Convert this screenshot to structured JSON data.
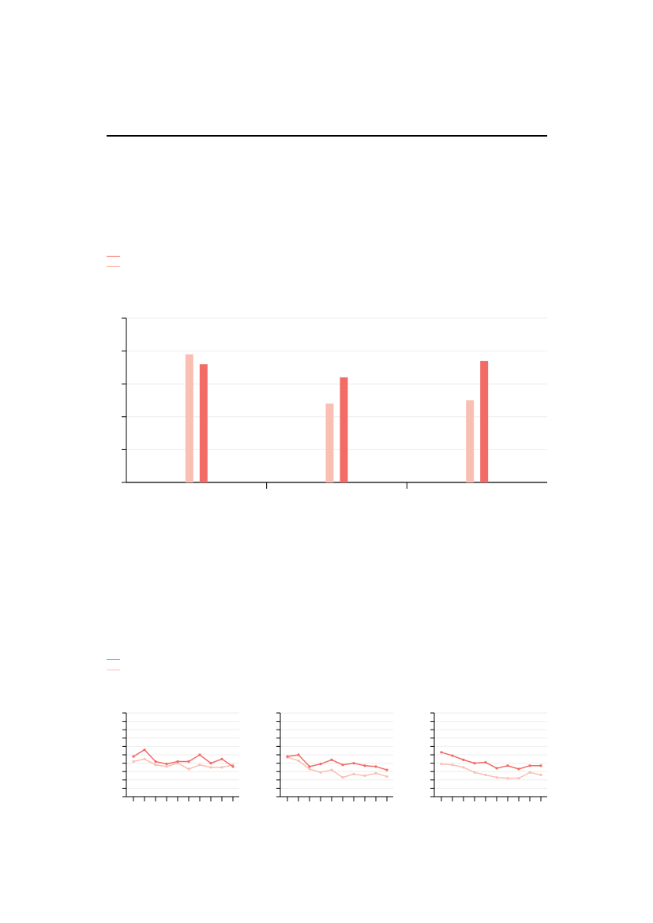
{
  "colors": {
    "series_dark": "#f26b67",
    "series_light": "#f9bfb3",
    "gridline": "#eeeeee",
    "axis": "#000000"
  },
  "legend_top": {
    "entries": [
      {
        "color": "#f26b67"
      },
      {
        "color": "#f9bfb3"
      }
    ]
  },
  "legend_bottom": {
    "entries": [
      {
        "color": "#f26b67"
      },
      {
        "color": "#f9bfb3"
      }
    ]
  },
  "chart_data": [
    {
      "type": "bar",
      "title": "",
      "xlabel": "",
      "ylabel": "",
      "categories": [
        "",
        "",
        ""
      ],
      "ylim": [
        0,
        5
      ],
      "grid": true,
      "series": [
        {
          "values": [
            3.9,
            2.4,
            2.5
          ],
          "color": "#f9bfb3"
        },
        {
          "values": [
            3.6,
            3.2,
            3.7
          ],
          "color": "#f26b67"
        }
      ]
    },
    {
      "type": "line",
      "title": "",
      "ylim": [
        0,
        10
      ],
      "grid": true,
      "x": [
        1,
        2,
        3,
        4,
        5,
        6,
        7,
        8,
        9,
        10
      ],
      "series": [
        {
          "values": [
            4.8,
            5.6,
            4.2,
            3.9,
            4.2,
            4.2,
            5.0,
            4.0,
            4.5,
            3.6
          ],
          "color": "#f26b67"
        },
        {
          "values": [
            4.2,
            4.5,
            3.8,
            3.6,
            4.0,
            3.3,
            3.8,
            3.5,
            3.5,
            3.8
          ],
          "color": "#f9bfb3"
        }
      ]
    },
    {
      "type": "line",
      "title": "",
      "ylim": [
        0,
        10
      ],
      "grid": true,
      "x": [
        1,
        2,
        3,
        4,
        5,
        6,
        7,
        8,
        9,
        10
      ],
      "series": [
        {
          "values": [
            4.8,
            5.0,
            3.6,
            3.9,
            4.4,
            3.8,
            4.0,
            3.7,
            3.6,
            3.2
          ],
          "color": "#f26b67"
        },
        {
          "values": [
            4.7,
            4.3,
            3.3,
            2.9,
            3.2,
            2.3,
            2.7,
            2.5,
            2.8,
            2.4
          ],
          "color": "#f9bfb3"
        }
      ]
    },
    {
      "type": "line",
      "title": "",
      "ylim": [
        0,
        10
      ],
      "grid": true,
      "x": [
        1,
        2,
        3,
        4,
        5,
        6,
        7,
        8,
        9,
        10
      ],
      "series": [
        {
          "values": [
            5.3,
            4.9,
            4.4,
            4.0,
            4.1,
            3.4,
            3.7,
            3.3,
            3.7,
            3.7
          ],
          "color": "#f26b67"
        },
        {
          "values": [
            3.9,
            3.8,
            3.5,
            2.9,
            2.6,
            2.3,
            2.2,
            2.2,
            2.9,
            2.6
          ],
          "color": "#f9bfb3"
        }
      ]
    }
  ]
}
